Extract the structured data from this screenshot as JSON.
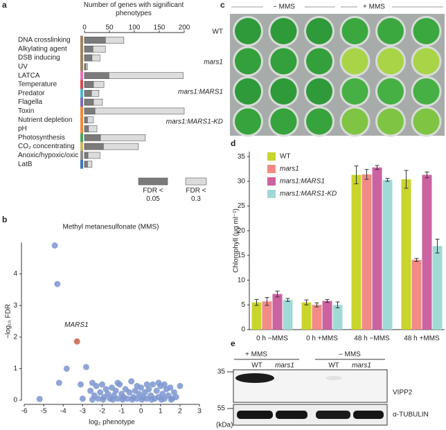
{
  "panel_labels": [
    "a",
    "b",
    "c",
    "d",
    "e"
  ],
  "chart_data": [
    {
      "type": "hbar",
      "x_label": "Number of genes with significant phenotypes",
      "categories": [
        "DNA crosslinking",
        "Alkylating agent",
        "DSB inducing",
        "UV",
        "LATCA",
        "Temperature",
        "Predator",
        "Flagella",
        "Toxin",
        "Nutrient depletion",
        "pH",
        "Photosynthesis",
        "CO₂ concentrating",
        "Anoxic/hypoxic/oxic",
        "LatB"
      ],
      "category_colors": [
        "#a0825e",
        "#a0825e",
        "#a0825e",
        "#a0825e",
        "#e46fb4",
        "#d64a4a",
        "#4fb3c7",
        "#7b69b3",
        "#ef8a3c",
        "#ef8a3c",
        "#ef8a3c",
        "#4ea35a",
        "#c9b860",
        "#8d8d8d",
        "#3f70b8"
      ],
      "series": [
        {
          "name": "FDR < 0.05",
          "color": "#7b7b7b",
          "values": [
            42,
            17,
            15,
            3,
            49,
            18,
            14,
            18,
            21,
            6,
            8,
            32,
            38,
            7,
            6
          ]
        },
        {
          "name": "FDR < 0.3",
          "color": "#dcdcdc",
          "values": [
            79,
            42,
            31,
            6,
            198,
            39,
            29,
            36,
            200,
            18,
            25,
            122,
            108,
            31,
            15
          ]
        }
      ],
      "xlim": [
        0,
        200
      ],
      "xticks": [
        0,
        50,
        100,
        150,
        200
      ],
      "grid": false
    },
    {
      "type": "scatter",
      "title": "Methyl metanesulfonate (MMS)",
      "x_label": "log₂ phenotype",
      "y_label": "−log₁₀ FDR",
      "series": [
        {
          "color": "#7d95d0",
          "x": [
            -4.43,
            -4.3,
            -3.82,
            -4.21,
            -2.82,
            -5.21,
            -3.1,
            -2.5,
            -2.6,
            -2.4,
            -2.3,
            -2.2,
            -2.1,
            -2.0,
            -1.9,
            -1.8,
            -1.7,
            -1.6,
            -1.5,
            -1.4,
            -1.3,
            -1.2,
            -1.1,
            -1.0,
            -0.9,
            -0.8,
            -0.7,
            -0.6,
            -0.5,
            -0.4,
            -0.3,
            -0.2,
            -0.1,
            0.0,
            0.1,
            0.2,
            0.3,
            0.4,
            0.5,
            0.6,
            0.7,
            0.8,
            0.9,
            1.0,
            1.1,
            1.2,
            1.3,
            1.4,
            1.5,
            1.6,
            1.7,
            1.8,
            2.0,
            -2.5,
            -1.95,
            -1.45,
            -0.95,
            -0.45,
            0.05,
            0.55,
            1.05,
            1.55,
            -1.2,
            0.9,
            -3.0,
            -0.2,
            0.3,
            1.2
          ],
          "values": [
            4.9,
            3.68,
            1.0,
            0.55,
            1.05,
            0.04,
            0.5,
            0.55,
            0.3,
            0.15,
            0.45,
            0.05,
            0.25,
            0.5,
            0.1,
            0.35,
            0.2,
            0.05,
            0.4,
            0.15,
            0.3,
            0.05,
            0.5,
            0.2,
            0.1,
            0.35,
            0.05,
            0.25,
            0.6,
            0.1,
            0.3,
            0.05,
            0.2,
            0.4,
            0.1,
            0.25,
            0.05,
            0.35,
            0.15,
            0.5,
            0.05,
            0.3,
            0.1,
            0.45,
            0.2,
            0.05,
            0.35,
            0.15,
            0.4,
            0.05,
            0.25,
            0.1,
            0.45,
            0.02,
            0.02,
            0.02,
            0.02,
            0.02,
            0.02,
            0.02,
            0.02,
            0.02,
            0.55,
            0.55,
            0.05,
            0.45,
            0.5,
            0.5
          ]
        },
        {
          "name": "MARS1",
          "color": "#c9614a",
          "x": [
            -3.29
          ],
          "values": [
            1.86
          ]
        }
      ],
      "xlim": [
        -6,
        3
      ],
      "xticks": [
        -6,
        -5,
        -4,
        -3,
        -2,
        -1,
        0,
        1,
        2,
        3
      ],
      "ylim": [
        0,
        5
      ],
      "yticks": [
        0,
        1,
        2,
        3,
        4
      ]
    },
    {
      "type": "grouped-bar",
      "y_label": "Chlorophyll (μg ml⁻¹)",
      "categories": [
        "0 h −MMS",
        "0 h +MMS",
        "48 h −MMS",
        "48 h +MMS"
      ],
      "series": [
        {
          "name": "WT",
          "color": "#c9d42c",
          "values": [
            5.5,
            5.5,
            31.3,
            30.4
          ],
          "errors": [
            0.6,
            0.5,
            1.8,
            1.8
          ]
        },
        {
          "name": "mars1",
          "color": "#f28a86",
          "values": [
            5.7,
            5.0,
            31.4,
            14.1
          ],
          "errors": [
            0.8,
            0.4,
            1.0,
            0.3
          ]
        },
        {
          "name": "mars1:MARS1",
          "color": "#cc62a0",
          "values": [
            7.2,
            5.8,
            32.8,
            31.3
          ],
          "errors": [
            0.6,
            0.3,
            0.4,
            0.6
          ]
        },
        {
          "name": "mars1:MARS1-KD",
          "color": "#9fdad6",
          "values": [
            6.0,
            5.0,
            30.3,
            16.9
          ],
          "errors": [
            0.3,
            0.6,
            0.3,
            1.4
          ]
        }
      ],
      "ylim": [
        0,
        36
      ],
      "yticks": [
        0,
        5,
        10,
        15,
        20,
        25,
        30,
        35
      ]
    }
  ],
  "photo": {
    "column_headers": [
      "− MMS",
      "+ MMS"
    ],
    "row_labels": [
      "WT",
      "mars1",
      "mars1:MARS1",
      "mars1:MARS1-KD"
    ]
  },
  "blot": {
    "treatments": [
      "+ MMS",
      "– MMS"
    ],
    "lanes": [
      "WT",
      "mars1",
      "WT",
      "mars1"
    ],
    "markers": [
      "35",
      "55"
    ],
    "unit": "(kDa)",
    "proteins": [
      "VIPP2",
      "α-TUBULIN"
    ]
  }
}
